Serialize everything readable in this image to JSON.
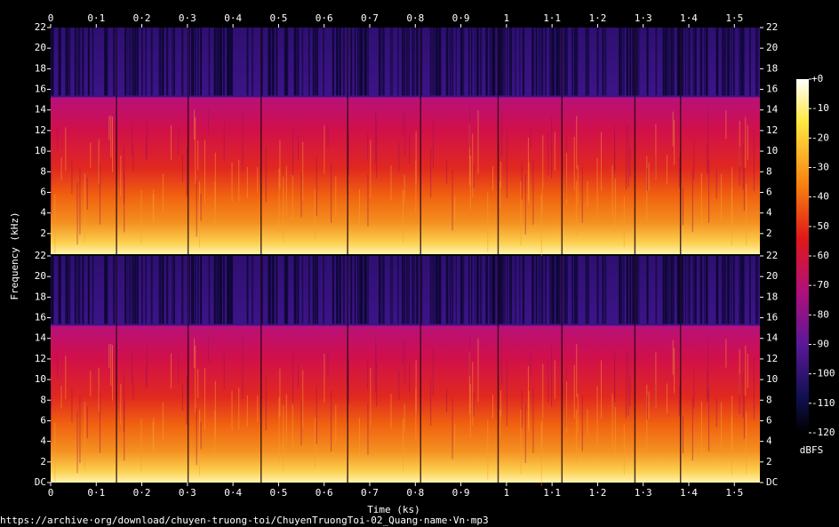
{
  "chart_data": [
    {
      "type": "spectrogram",
      "ylabel": "Frequency (kHz)",
      "xlim": [
        0,
        1.556
      ],
      "xticks": [
        0,
        {
          "value": 0.1,
          "label": "0·1"
        },
        {
          "value": 0.2,
          "label": "0·2"
        },
        {
          "value": 0.3,
          "label": "0·3"
        },
        {
          "value": 0.4,
          "label": "0·4"
        },
        {
          "value": 0.5,
          "label": "0·5"
        },
        {
          "value": 0.6,
          "label": "0·6"
        },
        {
          "value": 0.7,
          "label": "0·7"
        },
        {
          "value": 0.8,
          "label": "0·8"
        },
        {
          "value": 0.9,
          "label": "0·9"
        },
        1,
        {
          "value": 1.1,
          "label": "1·1"
        },
        {
          "value": 1.2,
          "label": "1·2"
        },
        {
          "value": 1.3,
          "label": "1·3"
        },
        {
          "value": 1.4,
          "label": "1·4"
        },
        {
          "value": 1.5,
          "label": "1·5"
        }
      ],
      "ylim": [
        0,
        22
      ],
      "yticks": [
        2,
        4,
        6,
        8,
        10,
        12,
        14,
        16,
        18,
        20,
        22
      ],
      "colorbar": {
        "label": "dBFS",
        "lim": [
          0,
          -120
        ],
        "ticks": [
          {
            "value": 0,
            "label": "+0"
          },
          -10,
          -20,
          -30,
          -40,
          -50,
          -60,
          -70,
          -80,
          -90,
          -100,
          -110,
          -120
        ]
      }
    },
    {
      "type": "spectrogram",
      "xlabel": "Time (ks)",
      "xlim": [
        0,
        1.556
      ],
      "xticks": [
        0,
        {
          "value": 0.1,
          "label": "0·1"
        },
        {
          "value": 0.2,
          "label": "0·2"
        },
        {
          "value": 0.3,
          "label": "0·3"
        },
        {
          "value": 0.4,
          "label": "0·4"
        },
        {
          "value": 0.5,
          "label": "0·5"
        },
        {
          "value": 0.6,
          "label": "0·6"
        },
        {
          "value": 0.7,
          "label": "0·7"
        },
        {
          "value": 0.8,
          "label": "0·8"
        },
        {
          "value": 0.9,
          "label": "0·9"
        },
        1,
        {
          "value": 1.1,
          "label": "1·1"
        },
        {
          "value": 1.2,
          "label": "1·2"
        },
        {
          "value": 1.3,
          "label": "1·3"
        },
        {
          "value": 1.4,
          "label": "1·4"
        },
        {
          "value": 1.5,
          "label": "1·5"
        }
      ],
      "ylim": [
        0,
        22
      ],
      "yticks": [
        {
          "value": 0,
          "label": "DC"
        },
        2,
        4,
        6,
        8,
        10,
        12,
        14,
        16,
        18,
        20,
        22
      ]
    }
  ],
  "source": "https://archive·org/download/chuyen-truong-toi/ChuyenTruongToi-02_Quang·name·Vn·mp3"
}
